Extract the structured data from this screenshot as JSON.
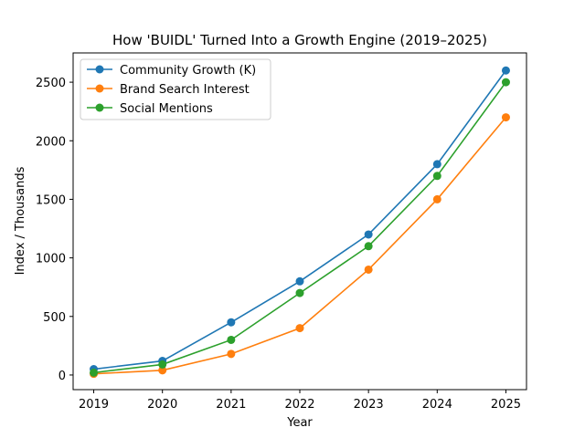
{
  "chart_data": {
    "type": "line",
    "title": "How 'BUIDL' Turned Into a Growth Engine (2019–2025)",
    "xlabel": "Year",
    "ylabel": "Index / Thousands",
    "x": [
      "2019",
      "2020",
      "2021",
      "2022",
      "2023",
      "2024",
      "2025"
    ],
    "xlim": [
      2018.7,
      2025.3
    ],
    "ylim": [
      -125,
      2750
    ],
    "yticks": [
      0,
      500,
      1000,
      1500,
      2000,
      2500
    ],
    "grid": false,
    "legend_position": "upper-left",
    "series": [
      {
        "name": "Community Growth (K)",
        "color": "#1f77b4",
        "values": [
          50,
          120,
          450,
          800,
          1200,
          1800,
          2600
        ]
      },
      {
        "name": "Brand Search Interest",
        "color": "#ff7f0e",
        "values": [
          10,
          40,
          180,
          400,
          900,
          1500,
          2200
        ]
      },
      {
        "name": "Social Mentions",
        "color": "#2ca02c",
        "values": [
          20,
          90,
          300,
          700,
          1100,
          1700,
          2500
        ]
      }
    ]
  }
}
